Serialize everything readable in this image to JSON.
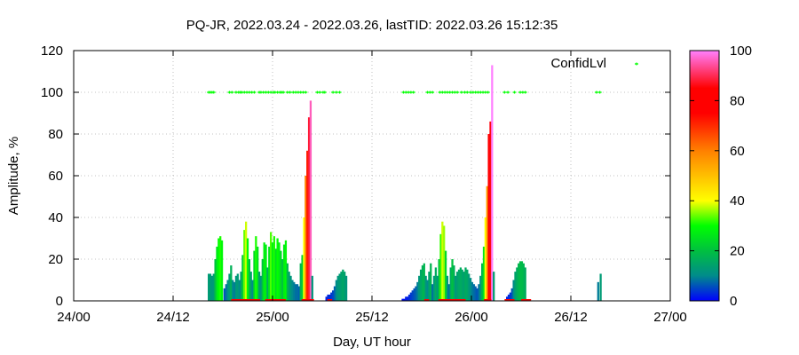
{
  "chart_data": {
    "type": "bar",
    "title": "PQ-JR, 2022.03.24 - 2022.03.26, lastTID: 2022.03.26 15:12:35",
    "xlabel": "Day, UT hour",
    "ylabel": "Amplitude, %",
    "x_ticks": [
      "24/00",
      "24/12",
      "25/00",
      "25/12",
      "26/00",
      "26/12",
      "27/00"
    ],
    "x_range_hours": [
      0,
      72
    ],
    "ylim": [
      0,
      120
    ],
    "y_ticks": [
      0,
      20,
      40,
      60,
      80,
      100,
      120
    ],
    "grid": true,
    "legend": {
      "position": "top-right",
      "label": "ConfidLvl",
      "color": "#00ff00"
    },
    "colorbar": {
      "range": [
        0,
        100
      ],
      "ticks": [
        0,
        20,
        40,
        60,
        80,
        100
      ],
      "stops": [
        {
          "v": 0,
          "color": "#0000ff"
        },
        {
          "v": 10,
          "color": "#008b8b"
        },
        {
          "v": 20,
          "color": "#00c040"
        },
        {
          "v": 30,
          "color": "#00ff00"
        },
        {
          "v": 40,
          "color": "#ffff00"
        },
        {
          "v": 60,
          "color": "#ff8000"
        },
        {
          "v": 75,
          "color": "#ff0000"
        },
        {
          "v": 85,
          "color": "#ff0000"
        },
        {
          "v": 100,
          "color": "#ff80ff"
        }
      ]
    },
    "amplitude": [
      [
        16.3,
        13
      ],
      [
        16.5,
        13
      ],
      [
        16.7,
        12
      ],
      [
        16.9,
        13
      ],
      [
        17.1,
        20
      ],
      [
        17.3,
        26
      ],
      [
        17.5,
        30
      ],
      [
        17.7,
        31
      ],
      [
        17.9,
        29
      ],
      [
        18.2,
        6
      ],
      [
        18.4,
        8
      ],
      [
        18.6,
        10
      ],
      [
        18.8,
        13
      ],
      [
        19.0,
        17
      ],
      [
        19.2,
        10
      ],
      [
        19.4,
        9
      ],
      [
        19.6,
        12
      ],
      [
        19.8,
        13
      ],
      [
        20.0,
        10
      ],
      [
        20.2,
        14
      ],
      [
        20.4,
        22
      ],
      [
        20.6,
        34
      ],
      [
        20.8,
        38
      ],
      [
        21.0,
        30
      ],
      [
        21.2,
        20
      ],
      [
        21.4,
        14
      ],
      [
        21.6,
        10
      ],
      [
        21.8,
        24
      ],
      [
        22.0,
        31
      ],
      [
        22.2,
        26
      ],
      [
        22.4,
        14
      ],
      [
        22.6,
        12
      ],
      [
        22.8,
        20
      ],
      [
        23.0,
        28
      ],
      [
        23.2,
        27
      ],
      [
        23.4,
        16
      ],
      [
        23.6,
        26
      ],
      [
        23.8,
        33
      ],
      [
        24.0,
        28
      ],
      [
        24.2,
        31
      ],
      [
        24.4,
        25
      ],
      [
        24.6,
        30
      ],
      [
        24.8,
        28
      ],
      [
        25.0,
        24
      ],
      [
        25.2,
        20
      ],
      [
        25.4,
        27
      ],
      [
        25.6,
        29
      ],
      [
        25.8,
        18
      ],
      [
        26.0,
        14
      ],
      [
        26.2,
        12
      ],
      [
        26.4,
        10
      ],
      [
        26.6,
        9
      ],
      [
        26.8,
        8
      ],
      [
        27.0,
        8
      ],
      [
        27.2,
        7
      ],
      [
        27.4,
        18
      ],
      [
        27.6,
        22
      ],
      [
        27.8,
        40
      ],
      [
        28.0,
        60
      ],
      [
        28.2,
        72
      ],
      [
        28.4,
        88
      ],
      [
        28.6,
        96
      ],
      [
        28.8,
        12
      ],
      [
        30.5,
        2
      ],
      [
        30.7,
        3
      ],
      [
        30.9,
        3
      ],
      [
        31.1,
        4
      ],
      [
        31.3,
        5
      ],
      [
        31.5,
        7
      ],
      [
        31.7,
        10
      ],
      [
        31.9,
        12
      ],
      [
        32.1,
        13
      ],
      [
        32.3,
        14
      ],
      [
        32.5,
        15
      ],
      [
        32.7,
        14
      ],
      [
        32.9,
        12
      ],
      [
        39.7,
        1
      ],
      [
        39.9,
        1
      ],
      [
        40.1,
        2
      ],
      [
        40.3,
        2
      ],
      [
        40.5,
        3
      ],
      [
        40.7,
        4
      ],
      [
        40.9,
        5
      ],
      [
        41.1,
        6
      ],
      [
        41.3,
        7
      ],
      [
        41.5,
        9
      ],
      [
        41.7,
        12
      ],
      [
        41.9,
        15
      ],
      [
        42.1,
        17
      ],
      [
        42.3,
        18
      ],
      [
        42.5,
        12
      ],
      [
        42.7,
        10
      ],
      [
        42.9,
        14
      ],
      [
        43.1,
        18
      ],
      [
        43.3,
        8
      ],
      [
        43.5,
        12
      ],
      [
        43.7,
        16
      ],
      [
        43.9,
        12
      ],
      [
        44.1,
        20
      ],
      [
        44.3,
        32
      ],
      [
        44.5,
        38
      ],
      [
        44.7,
        36
      ],
      [
        44.9,
        24
      ],
      [
        45.1,
        12
      ],
      [
        45.3,
        8
      ],
      [
        45.5,
        16
      ],
      [
        45.7,
        20
      ],
      [
        45.9,
        17
      ],
      [
        46.1,
        12
      ],
      [
        46.3,
        14
      ],
      [
        46.5,
        15
      ],
      [
        46.7,
        16
      ],
      [
        46.9,
        15
      ],
      [
        47.1,
        14
      ],
      [
        47.3,
        16
      ],
      [
        47.5,
        15
      ],
      [
        47.7,
        13
      ],
      [
        47.9,
        11
      ],
      [
        48.1,
        9
      ],
      [
        48.3,
        8
      ],
      [
        48.5,
        7
      ],
      [
        48.7,
        6
      ],
      [
        48.9,
        8
      ],
      [
        49.1,
        12
      ],
      [
        49.3,
        18
      ],
      [
        49.5,
        26
      ],
      [
        49.7,
        40
      ],
      [
        49.9,
        55
      ],
      [
        50.1,
        80
      ],
      [
        50.3,
        86
      ],
      [
        50.5,
        113
      ],
      [
        50.7,
        14
      ],
      [
        52.3,
        2
      ],
      [
        52.5,
        3
      ],
      [
        52.7,
        4
      ],
      [
        52.9,
        6
      ],
      [
        53.1,
        10
      ],
      [
        53.3,
        14
      ],
      [
        53.5,
        16
      ],
      [
        53.7,
        18
      ],
      [
        53.9,
        19
      ],
      [
        54.1,
        19
      ],
      [
        54.3,
        18
      ],
      [
        54.5,
        16
      ],
      [
        63.3,
        9
      ],
      [
        63.6,
        13
      ]
    ],
    "confidence_points": [
      [
        16.3,
        100
      ],
      [
        16.5,
        100
      ],
      [
        16.7,
        100
      ],
      [
        16.9,
        100
      ],
      [
        18.8,
        100
      ],
      [
        19.1,
        100
      ],
      [
        19.6,
        100
      ],
      [
        19.9,
        100
      ],
      [
        20.1,
        100
      ],
      [
        20.3,
        100
      ],
      [
        20.6,
        100
      ],
      [
        20.9,
        100
      ],
      [
        21.2,
        100
      ],
      [
        21.5,
        100
      ],
      [
        21.8,
        100
      ],
      [
        22.4,
        100
      ],
      [
        22.6,
        100
      ],
      [
        22.9,
        100
      ],
      [
        23.2,
        100
      ],
      [
        23.5,
        100
      ],
      [
        23.8,
        100
      ],
      [
        24.1,
        100
      ],
      [
        24.3,
        100
      ],
      [
        24.6,
        100
      ],
      [
        24.9,
        100
      ],
      [
        25.1,
        100
      ],
      [
        25.3,
        100
      ],
      [
        25.8,
        100
      ],
      [
        26.1,
        100
      ],
      [
        26.5,
        100
      ],
      [
        26.8,
        100
      ],
      [
        27.1,
        100
      ],
      [
        27.4,
        100
      ],
      [
        27.7,
        100
      ],
      [
        28.0,
        100
      ],
      [
        29.4,
        100
      ],
      [
        29.7,
        100
      ],
      [
        30.1,
        100
      ],
      [
        30.3,
        100
      ],
      [
        31.3,
        100
      ],
      [
        31.7,
        100
      ],
      [
        32.1,
        100
      ],
      [
        39.8,
        100
      ],
      [
        40.1,
        100
      ],
      [
        40.4,
        100
      ],
      [
        40.7,
        100
      ],
      [
        41.0,
        100
      ],
      [
        42.7,
        100
      ],
      [
        43.0,
        100
      ],
      [
        43.3,
        100
      ],
      [
        44.2,
        100
      ],
      [
        44.5,
        100
      ],
      [
        44.8,
        100
      ],
      [
        45.1,
        100
      ],
      [
        45.4,
        100
      ],
      [
        45.7,
        100
      ],
      [
        46.0,
        100
      ],
      [
        46.3,
        100
      ],
      [
        46.8,
        100
      ],
      [
        47.2,
        100
      ],
      [
        47.5,
        100
      ],
      [
        47.9,
        100
      ],
      [
        48.2,
        100
      ],
      [
        48.5,
        100
      ],
      [
        48.8,
        100
      ],
      [
        49.1,
        100
      ],
      [
        49.4,
        100
      ],
      [
        49.7,
        100
      ],
      [
        50.0,
        100
      ],
      [
        52.0,
        100
      ],
      [
        52.4,
        100
      ],
      [
        53.2,
        100
      ],
      [
        53.9,
        100
      ],
      [
        54.2,
        100
      ],
      [
        54.5,
        100
      ],
      [
        63.1,
        100
      ],
      [
        63.5,
        100
      ]
    ],
    "baseline_red_marks": [
      [
        19.0,
        22.5
      ],
      [
        23.1,
        25.6
      ],
      [
        27.5,
        29.0
      ],
      [
        30.6,
        31.2
      ],
      [
        42.3,
        42.9
      ],
      [
        44.0,
        47.3
      ],
      [
        49.5,
        50.4
      ],
      [
        52.0,
        53.2
      ],
      [
        54.0,
        55.2
      ]
    ]
  }
}
